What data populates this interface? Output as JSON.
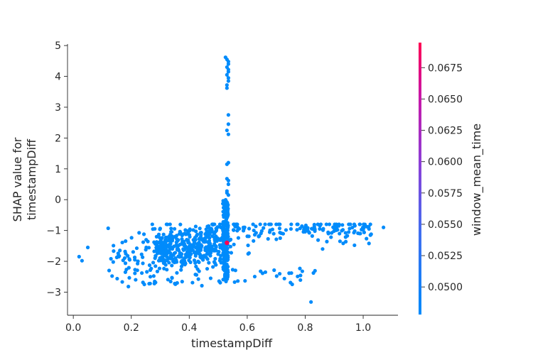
{
  "chart_data": {
    "type": "scatter",
    "title": "",
    "xlabel": "timestampDiff",
    "ylabel_lines": [
      "SHAP value for",
      "timestampDiff"
    ],
    "xlim": [
      -0.02,
      1.12
    ],
    "ylim": [
      -3.75,
      5.05
    ],
    "xticks": [
      0.0,
      0.2,
      0.4,
      0.6,
      0.8,
      1.0
    ],
    "xtick_labels": [
      "0.0",
      "0.2",
      "0.4",
      "0.6",
      "0.8",
      "1.0"
    ],
    "yticks": [
      5,
      4,
      3,
      2,
      1,
      0,
      -1,
      -2,
      -3
    ],
    "ytick_labels": [
      "5",
      "4",
      "3",
      "2",
      "1",
      "0",
      "−1",
      "−2",
      "−3"
    ],
    "grid": false,
    "colorbar": {
      "label": "window_mean_time",
      "range": [
        0.0478,
        0.0695
      ],
      "ticks": [
        0.0675,
        0.065,
        0.0625,
        0.06,
        0.0575,
        0.055,
        0.0525,
        0.05
      ],
      "tick_labels": [
        "0.0675",
        "0.0650",
        "0.0625",
        "0.0600",
        "0.0575",
        "0.0550",
        "0.0525",
        "0.0500"
      ],
      "low_color": "#008afb",
      "high_color": "#ff0052"
    },
    "base_color": "#008bfb",
    "highlight_point": {
      "x": 0.53,
      "y": -1.4,
      "color_value": 0.0695
    },
    "point_groups": [
      {
        "name": "vertical_column_tail",
        "x": [
          0.525,
          0.53,
          0.535,
          0.535,
          0.53,
          0.535,
          0.535,
          0.53,
          0.535,
          0.535,
          0.53,
          0.53,
          0.535,
          0.535,
          0.53,
          0.535
        ],
        "y": [
          4.62,
          4.55,
          4.48,
          4.4,
          4.3,
          4.22,
          4.15,
          4.05,
          3.95,
          3.85,
          3.72,
          3.62,
          2.75,
          2.45,
          2.25,
          2.12
        ]
      },
      {
        "name": "vertical_column_mid",
        "x": [
          0.535,
          0.53,
          0.53,
          0.535,
          0.535,
          0.53,
          0.53,
          0.535
        ],
        "y": [
          1.2,
          1.15,
          0.68,
          0.62,
          0.5,
          0.28,
          0.22,
          0.15
        ]
      },
      {
        "name": "scatter_low_tail",
        "x": [
          0.82,
          0.02,
          0.03,
          0.05,
          0.19,
          0.215,
          0.245,
          0.265
        ],
        "y": [
          -3.32,
          -1.85,
          -1.98,
          -1.55,
          -2.82,
          -2.6,
          -2.75,
          -2.72
        ]
      }
    ]
  }
}
